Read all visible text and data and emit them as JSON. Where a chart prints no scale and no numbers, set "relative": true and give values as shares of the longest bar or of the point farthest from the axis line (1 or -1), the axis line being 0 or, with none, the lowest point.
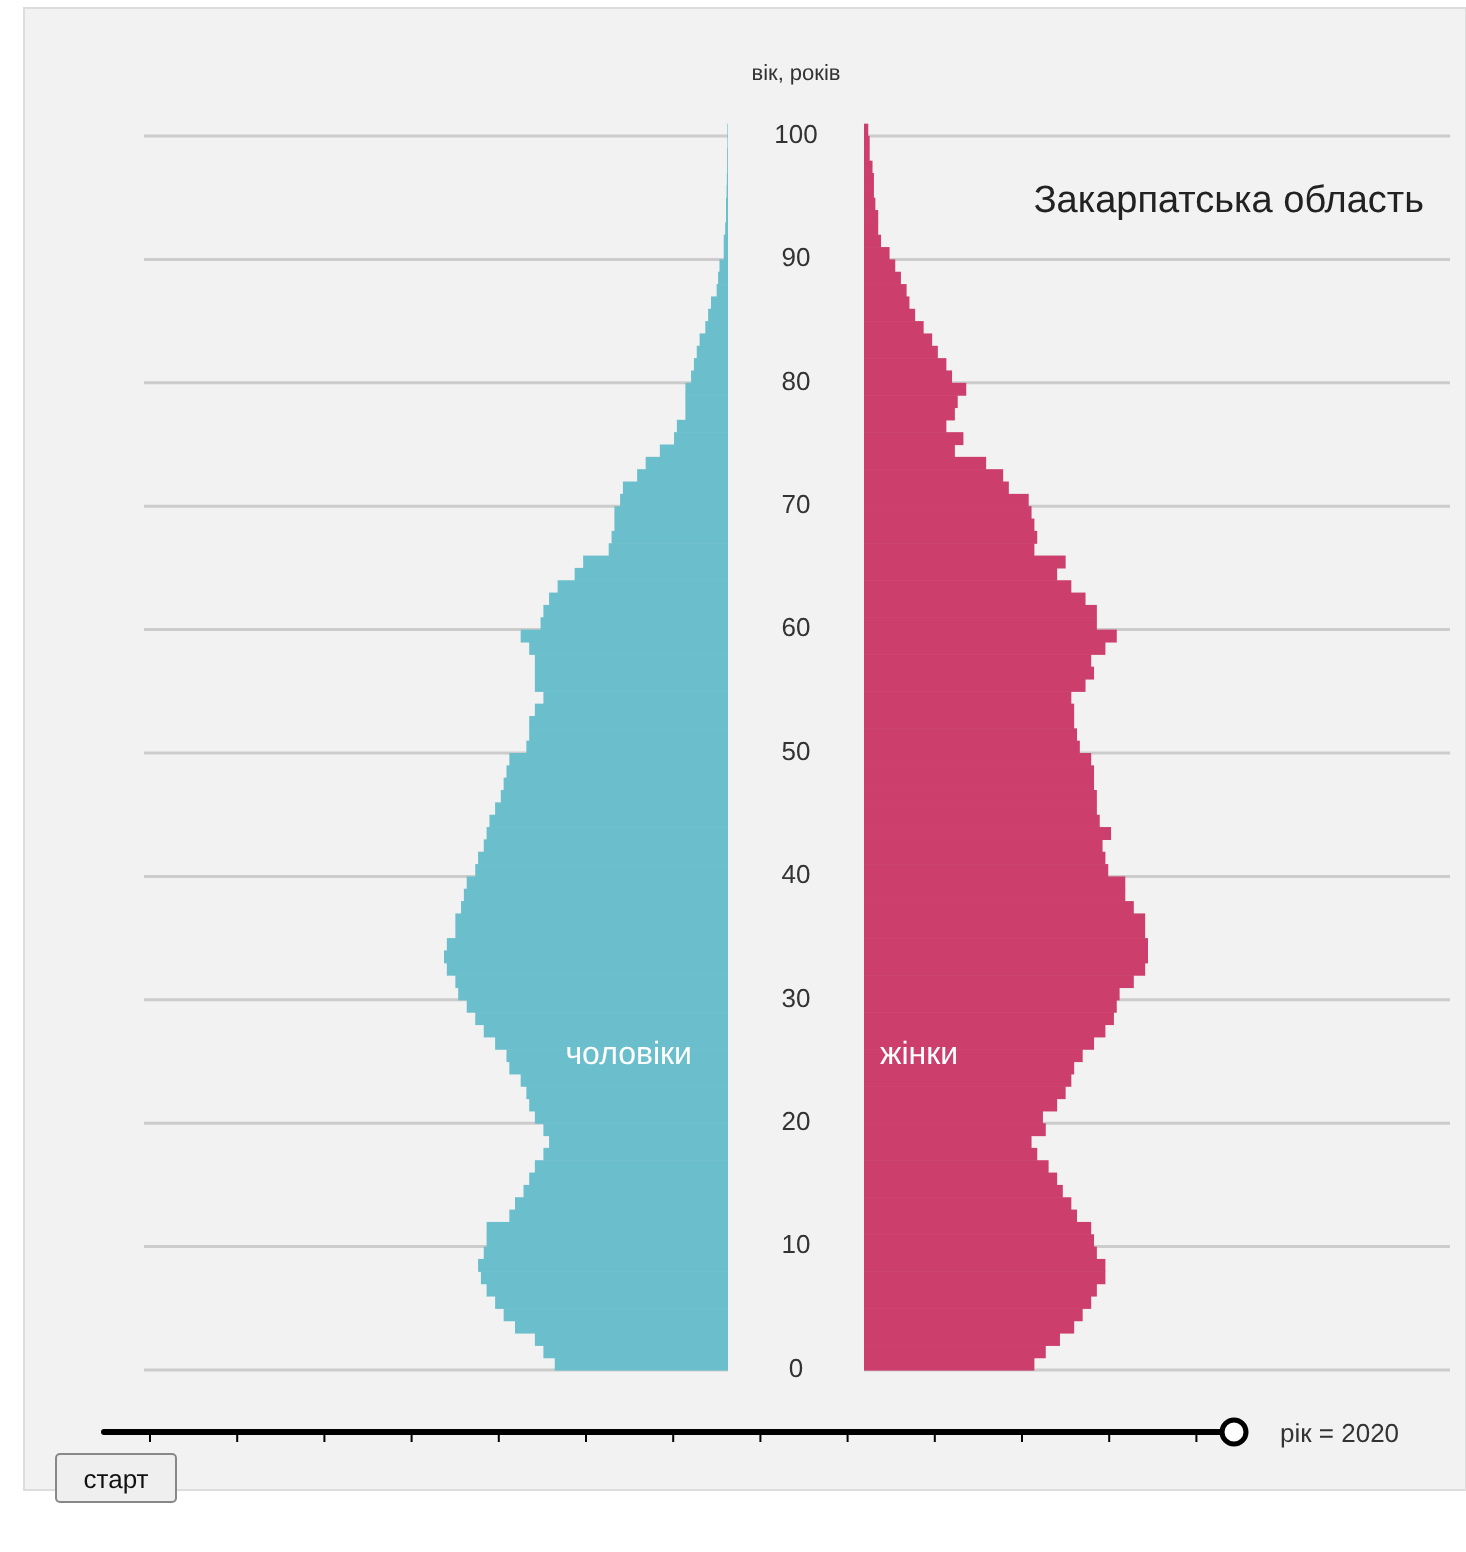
{
  "chart_data": [
    {
      "type": "bar",
      "orientation": "horizontal",
      "relative": true,
      "grid": true,
      "tick_labels": false,
      "categories": [
        "100",
        null,
        null,
        null,
        null,
        null,
        null,
        null,
        null,
        null,
        "90",
        null,
        null,
        null,
        null,
        null,
        null,
        null,
        null,
        null,
        "80",
        null,
        null,
        null,
        null,
        null,
        null,
        null,
        null,
        null,
        "70",
        null,
        null,
        null,
        null,
        null,
        null,
        null,
        null,
        null,
        "60",
        null,
        null,
        null,
        null,
        null,
        null,
        null,
        null,
        null,
        "50",
        null,
        null,
        null,
        null,
        null,
        null,
        null,
        null,
        null,
        "40",
        null,
        null,
        null,
        null,
        null,
        null,
        null,
        null,
        null,
        "30",
        null,
        null,
        null,
        null,
        null,
        null,
        null,
        null,
        null,
        "20",
        null,
        null,
        null,
        null,
        null,
        null,
        null,
        null,
        null,
        "10",
        null,
        null,
        null,
        null,
        null,
        null,
        null,
        null,
        null,
        "0"
      ],
      "series": [
        {
          "name": "чоловіки",
          "color": "#6bbfcc",
          "values": [
            -0.002,
            -0.002,
            -0.003,
            -0.003,
            -0.004,
            -0.005,
            -0.007,
            -0.007,
            -0.01,
            -0.015,
            -0.015,
            -0.03,
            -0.035,
            -0.04,
            -0.06,
            -0.07,
            -0.08,
            -0.1,
            -0.11,
            -0.12,
            -0.13,
            -0.15,
            -0.15,
            -0.15,
            -0.18,
            -0.19,
            -0.24,
            -0.29,
            -0.32,
            -0.37,
            -0.38,
            -0.4,
            -0.4,
            -0.41,
            -0.42,
            -0.51,
            -0.54,
            -0.6,
            -0.63,
            -0.65,
            -0.66,
            -0.73,
            -0.7,
            -0.68,
            -0.68,
            -0.68,
            -0.65,
            -0.68,
            -0.7,
            -0.7,
            -0.71,
            -0.77,
            -0.78,
            -0.79,
            -0.8,
            -0.82,
            -0.84,
            -0.85,
            -0.86,
            -0.88,
            -0.89,
            -0.92,
            -0.93,
            -0.94,
            -0.96,
            -0.96,
            -0.99,
            -1,
            -0.99,
            -0.96,
            -0.95,
            -0.92,
            -0.89,
            -0.86,
            -0.82,
            -0.78,
            -0.77,
            -0.73,
            -0.71,
            -0.7,
            -0.68,
            -0.65,
            -0.63,
            -0.65,
            -0.68,
            -0.7,
            -0.72,
            -0.75,
            -0.77,
            -0.85,
            -0.85,
            -0.86,
            -0.88,
            -0.87,
            -0.85,
            -0.82,
            -0.79,
            -0.75,
            -0.68,
            -0.65,
            -0.61
          ]
        }
      ]
    },
    {
      "type": "bar",
      "orientation": "horizontal",
      "relative": true,
      "grid": true,
      "tick_labels": "y",
      "title": "Закарпатська область",
      "ylabel": "вік, років",
      "annotations": [
        "рік = 2020",
        "старт"
      ],
      "categories": [
        "100",
        null,
        null,
        null,
        null,
        null,
        null,
        null,
        null,
        null,
        "90",
        null,
        null,
        null,
        null,
        null,
        null,
        null,
        null,
        null,
        "80",
        null,
        null,
        null,
        null,
        null,
        null,
        null,
        null,
        null,
        "70",
        null,
        null,
        null,
        null,
        null,
        null,
        null,
        null,
        null,
        "60",
        null,
        null,
        null,
        null,
        null,
        null,
        null,
        null,
        null,
        "50",
        null,
        null,
        null,
        null,
        null,
        null,
        null,
        null,
        null,
        "40",
        null,
        null,
        null,
        null,
        null,
        null,
        null,
        null,
        null,
        "30",
        null,
        null,
        null,
        null,
        null,
        null,
        null,
        null,
        null,
        "20",
        null,
        null,
        null,
        null,
        null,
        null,
        null,
        null,
        null,
        "10",
        null,
        null,
        null,
        null,
        null,
        null,
        null,
        null,
        null,
        "0"
      ],
      "series": [
        {
          "name": "жінки",
          "color": "#cc3f6d",
          "values": [
            0.015,
            0.02,
            0.02,
            0.03,
            0.035,
            0.035,
            0.04,
            0.05,
            0.05,
            0.06,
            0.09,
            0.11,
            0.13,
            0.15,
            0.16,
            0.18,
            0.21,
            0.24,
            0.26,
            0.29,
            0.31,
            0.36,
            0.33,
            0.32,
            0.29,
            0.35,
            0.32,
            0.43,
            0.49,
            0.51,
            0.58,
            0.59,
            0.6,
            0.61,
            0.6,
            0.71,
            0.68,
            0.73,
            0.78,
            0.82,
            0.82,
            0.89,
            0.85,
            0.8,
            0.81,
            0.78,
            0.73,
            0.74,
            0.74,
            0.75,
            0.76,
            0.8,
            0.81,
            0.81,
            0.82,
            0.82,
            0.83,
            0.87,
            0.84,
            0.85,
            0.86,
            0.92,
            0.92,
            0.95,
            0.99,
            0.99,
            1,
            1,
            0.99,
            0.95,
            0.9,
            0.89,
            0.88,
            0.85,
            0.81,
            0.77,
            0.74,
            0.73,
            0.71,
            0.68,
            0.63,
            0.64,
            0.59,
            0.61,
            0.65,
            0.68,
            0.7,
            0.73,
            0.75,
            0.8,
            0.81,
            0.82,
            0.85,
            0.85,
            0.82,
            0.8,
            0.77,
            0.74,
            0.69,
            0.64,
            0.6
          ]
        }
      ]
    }
  ]
}
